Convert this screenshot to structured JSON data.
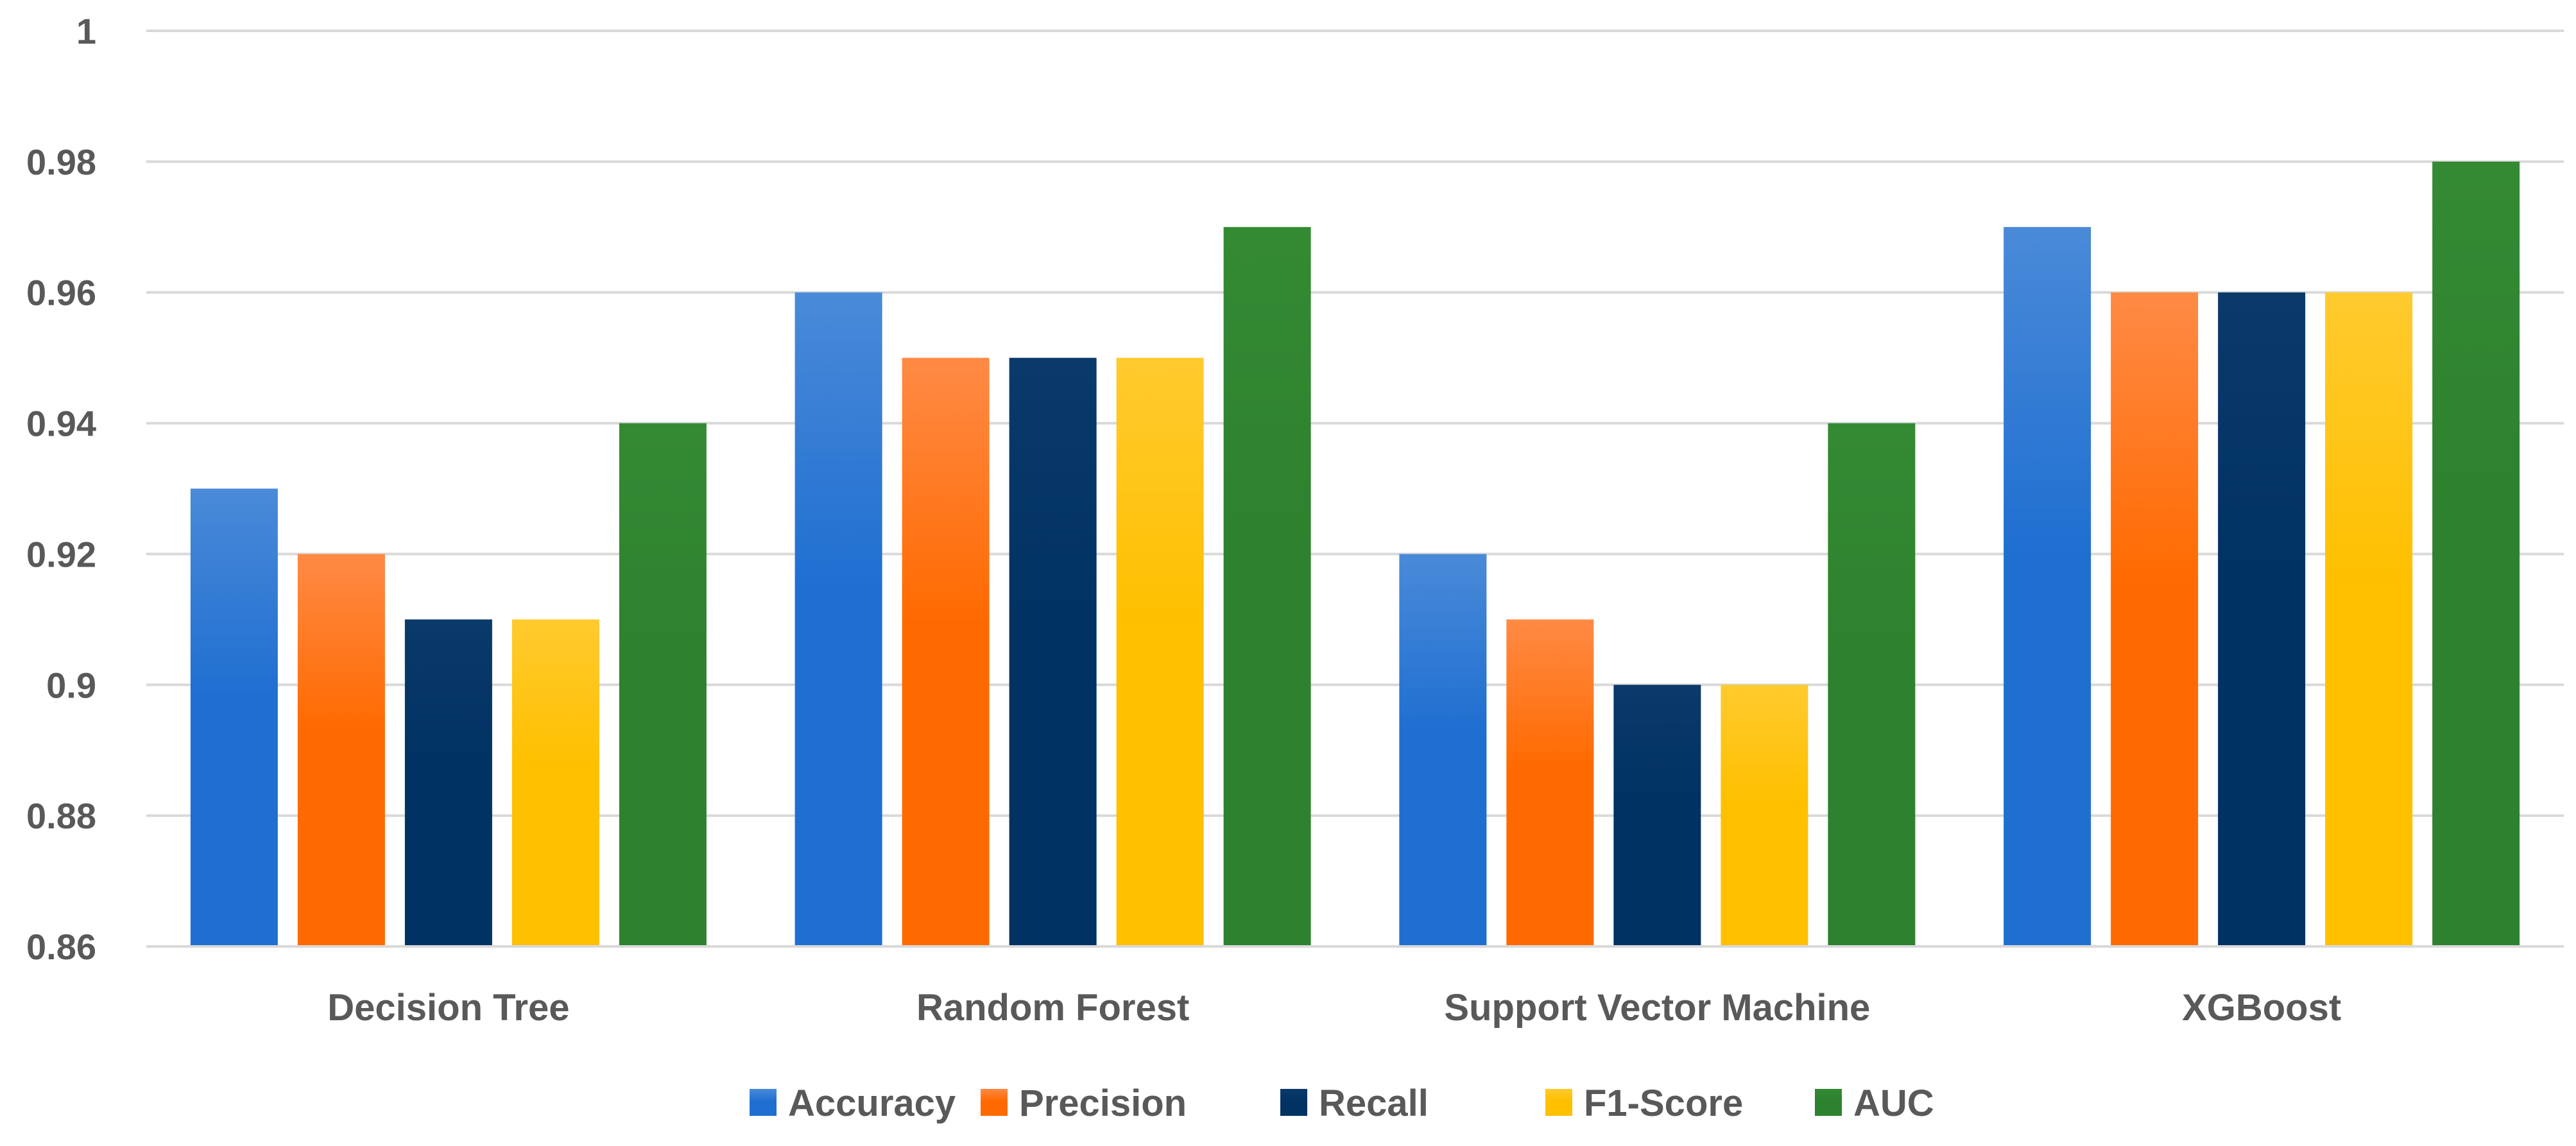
{
  "chart_data": {
    "type": "bar",
    "title": "",
    "xlabel": "",
    "ylabel": "",
    "categories": [
      "Decision Tree",
      "Random Forest",
      "Support Vector Machine",
      "XGBoost"
    ],
    "series": [
      {
        "name": "Accuracy",
        "values": [
          0.93,
          0.96,
          0.92,
          0.97
        ],
        "color": "#1f6fd1",
        "color_light": "#4a8ad8"
      },
      {
        "name": "Precision",
        "values": [
          0.92,
          0.95,
          0.91,
          0.96
        ],
        "color": "#ff6a00",
        "color_light": "#ff8a45"
      },
      {
        "name": "Recall",
        "values": [
          0.91,
          0.95,
          0.9,
          0.96
        ],
        "color": "#003263",
        "color_light": "#0a3a6a"
      },
      {
        "name": "F1-Score",
        "values": [
          0.91,
          0.95,
          0.9,
          0.96
        ],
        "color": "#ffc000",
        "color_light": "#ffca2e"
      },
      {
        "name": "AUC",
        "values": [
          0.94,
          0.97,
          0.94,
          0.98
        ],
        "color": "#2e812e",
        "color_light": "#348a33"
      }
    ],
    "ylim": [
      0.86,
      1.0
    ],
    "yticks": [
      "0.86",
      "0.88",
      "0.9",
      "0.92",
      "0.94",
      "0.96",
      "0.98",
      "1"
    ],
    "ytick_values": [
      0.86,
      0.88,
      0.9,
      0.92,
      0.94,
      0.96,
      0.98,
      1.0
    ],
    "grid": true,
    "grid_color": "#d9d9d9",
    "text_color": "#595959",
    "legend_position": "bottom"
  }
}
